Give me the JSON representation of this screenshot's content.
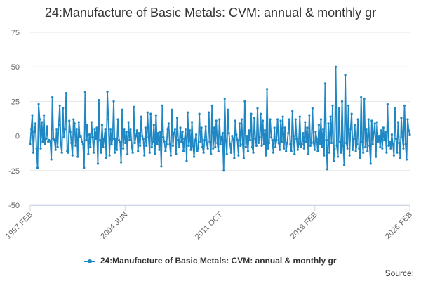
{
  "chart_data": {
    "type": "line",
    "title": "24:Manufacture of Basic Metals: CVM: annual & monthly gr",
    "xlabel": "",
    "ylabel": "",
    "ylim": [
      -50,
      75
    ],
    "yticks": [
      75,
      50,
      25,
      0,
      -25,
      -50
    ],
    "xlim": [
      "1997 FEB",
      "2026 FEB"
    ],
    "xtick_labels": [
      "1997 FEB",
      "2004 JUN",
      "2011 OCT",
      "2019 FEB",
      "2026 FEB"
    ],
    "credit": "Source:",
    "series": [
      {
        "name": "24:Manufacture of Basic Metals: CVM: annual & monthly gr",
        "color": "#1f87c3",
        "sampling": "monthly, 1997 FEB to 2026 FEB (approximate readings)",
        "values": [
          -6,
          5,
          15,
          -12,
          3,
          9,
          -9,
          -23,
          23,
          12,
          -9,
          10,
          -4,
          15,
          -6,
          -2,
          7,
          -4,
          -3,
          -4,
          -17,
          28,
          -2,
          -3,
          -10,
          5,
          -8,
          8,
          22,
          -6,
          -12,
          20,
          -1,
          5,
          31,
          -11,
          -12,
          11,
          3,
          -5,
          -14,
          12,
          9,
          -7,
          5,
          -15,
          10,
          -1,
          0,
          -4,
          -6,
          -23,
          32,
          -3,
          8,
          -13,
          1,
          -8,
          10,
          -1,
          -12,
          5,
          -2,
          6,
          -20,
          26,
          -3,
          -12,
          8,
          -8,
          -2,
          5,
          -16,
          32,
          12,
          -14,
          5,
          -6,
          -2,
          25,
          -12,
          -2,
          -10,
          12,
          -3,
          -4,
          -19,
          19,
          -9,
          5,
          -5,
          3,
          -13,
          10,
          -3,
          5,
          -8,
          -12,
          21,
          -5,
          0,
          4,
          -11,
          2,
          -7,
          14,
          0,
          -2,
          -14,
          6,
          -7,
          17,
          -1,
          -12,
          16,
          -8,
          -4,
          8,
          -13,
          15,
          -6,
          2,
          -10,
          3,
          -22,
          22,
          -1,
          -4,
          -11,
          -6,
          5,
          9,
          -6,
          -14,
          19,
          -7,
          2,
          5,
          -13,
          13,
          -3,
          -8,
          6,
          -4,
          3,
          -11,
          -2,
          5,
          -18,
          17,
          -7,
          4,
          -10,
          10,
          -7,
          -15,
          -3,
          1,
          -11,
          -9,
          16,
          -4,
          6,
          -8,
          -12,
          -3,
          7,
          -6,
          -9,
          17,
          -4,
          -13,
          22,
          -9,
          6,
          -8,
          11,
          -5,
          -11,
          12,
          -6,
          -1,
          2,
          -25,
          27,
          -3,
          -13,
          19,
          2,
          -6,
          -12,
          0,
          -2,
          -16,
          11,
          1,
          -3,
          -14,
          9,
          -7,
          12,
          -6,
          -16,
          25,
          -8,
          0,
          -11,
          4,
          -3,
          16,
          -8,
          -12,
          13,
          -2,
          -7,
          20,
          -5,
          -1,
          16,
          -7,
          11,
          -6,
          4,
          -14,
          34,
          -9,
          -5,
          12,
          -1,
          -3,
          -12,
          6,
          -8,
          -3,
          12,
          -5,
          -10,
          11,
          -4,
          14,
          -9,
          6,
          -11,
          -5,
          2,
          12,
          -6,
          -11,
          18,
          0,
          -13,
          12,
          -2,
          -10,
          -6,
          14,
          -8,
          -6,
          2,
          -9,
          10,
          -4,
          6,
          -13,
          15,
          -7,
          -4,
          20,
          -5,
          -10,
          3,
          -2,
          -11,
          8,
          -6,
          12,
          -8,
          5,
          -14,
          38,
          -3,
          -24,
          9,
          -12,
          14,
          -5,
          22,
          -18,
          -9,
          50,
          -7,
          -15,
          20,
          -4,
          -12,
          25,
          -7,
          -21,
          44,
          -5,
          -9,
          22,
          -14,
          5,
          16,
          -10,
          -2,
          8,
          -11,
          -6,
          12,
          -9,
          -16,
          28,
          -4,
          -12,
          27,
          -8,
          5,
          -11,
          12,
          -7,
          -20,
          11,
          -6,
          2,
          9,
          -15,
          10,
          -4,
          0,
          -8,
          4,
          -9,
          6,
          -3,
          3,
          -12,
          23,
          -7,
          -4,
          -9,
          1,
          -6,
          -14,
          20,
          -2,
          -12,
          10,
          -5,
          -16,
          13,
          -1,
          -9,
          22,
          -6,
          -17,
          12,
          4,
          1
        ]
      }
    ]
  }
}
